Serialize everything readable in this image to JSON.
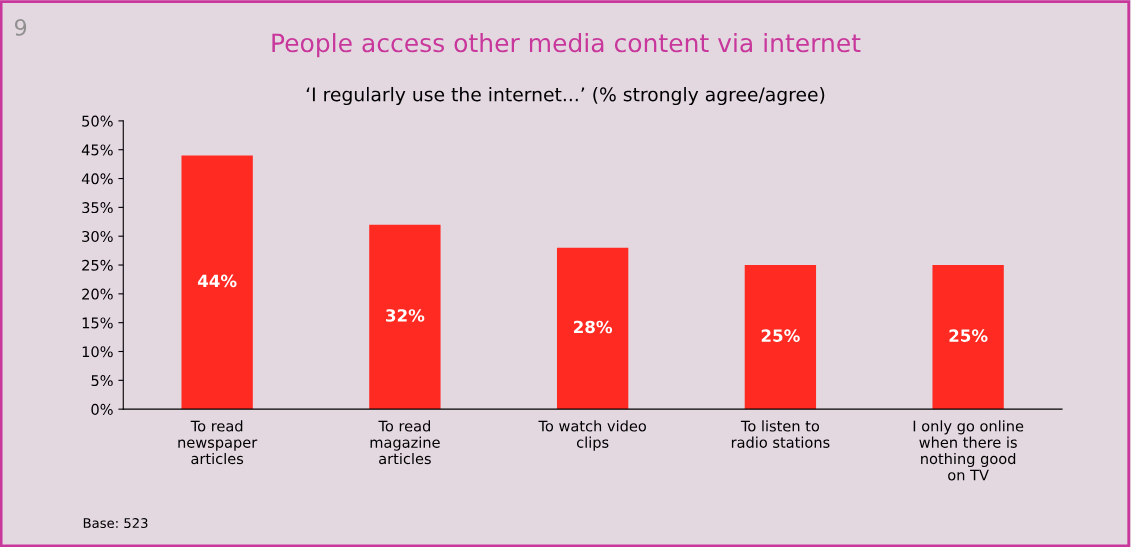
{
  "chart_data": {
    "type": "bar",
    "title": "People access other media content via internet",
    "subtitle": "‘I regularly use the internet...’ (% strongly agree/agree)",
    "categories": [
      "To read\nnewspaper\narticles",
      "To read\nmagazine\narticles",
      "To watch video\nclips",
      "To listen to\nradio stations",
      "I only go online\nwhen there is\nnothing good\non TV"
    ],
    "values": [
      44,
      32,
      28,
      25,
      25
    ],
    "color": "#ff2a22",
    "value_labels": [
      "44%",
      "32%",
      "28%",
      "25%",
      "25%"
    ],
    "ylim": [
      0,
      50
    ],
    "yticks": [
      {
        "value": 0,
        "label": "0%"
      },
      {
        "value": 5,
        "label": "5%"
      },
      {
        "value": 10,
        "label": "10%"
      },
      {
        "value": 15,
        "label": "15%"
      },
      {
        "value": 20,
        "label": "20%"
      },
      {
        "value": 25,
        "label": "25%"
      },
      {
        "value": 30,
        "label": "30%"
      },
      {
        "value": 35,
        "label": "35%"
      },
      {
        "value": 40,
        "label": "40%"
      },
      {
        "value": 45,
        "label": "45%"
      },
      {
        "value": 50,
        "label": "50%"
      }
    ],
    "grid": false,
    "legend": false,
    "annotations": [
      "9",
      "Base: 523"
    ]
  }
}
